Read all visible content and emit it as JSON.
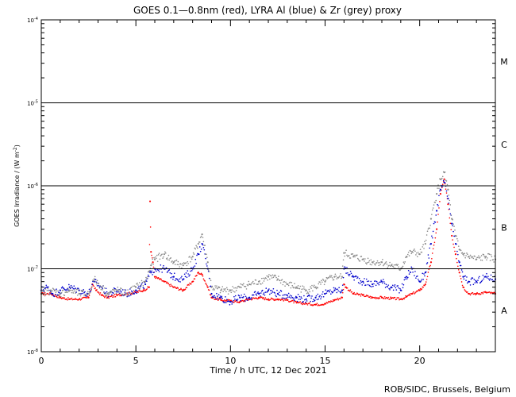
{
  "chart_data": {
    "type": "scatter",
    "title": "GOES 0.1—0.8nm (red), LYRA Al (blue) & Zr (grey) proxy",
    "xlabel": "Time / h UTC, 12 Dec 2021",
    "ylabel_main": "GOES Irradiance / (W m",
    "ylabel_sup": "-2",
    "ylabel_close": ")",
    "credit": "ROB/SIDC, Brussels, Belgium",
    "xlim": [
      0,
      24
    ],
    "ylim": [
      1e-08,
      0.0001
    ],
    "y_scale": "log",
    "x_ticks": [
      {
        "value": 0,
        "label": "0"
      },
      {
        "value": 5,
        "label": "5"
      },
      {
        "value": 10,
        "label": "10"
      },
      {
        "value": 15,
        "label": "15"
      },
      {
        "value": 20,
        "label": "20"
      }
    ],
    "y_ticks": [
      {
        "value": 1e-08,
        "base": "10",
        "exp": "-8"
      },
      {
        "value": 1e-07,
        "base": "10",
        "exp": "-7"
      },
      {
        "value": 1e-06,
        "base": "10",
        "exp": "-6"
      },
      {
        "value": 1e-05,
        "base": "10",
        "exp": "-5"
      },
      {
        "value": 0.0001,
        "base": "10",
        "exp": "-4"
      }
    ],
    "flare_lines": [
      1e-07,
      1e-06,
      1e-05
    ],
    "flare_classes": [
      {
        "label": "A",
        "value": 3.16e-08
      },
      {
        "label": "B",
        "value": 3.16e-07
      },
      {
        "label": "C",
        "value": 3.16e-06
      },
      {
        "label": "M",
        "value": 3.16e-05
      }
    ],
    "series": [
      {
        "name": "GOES 0.1—0.8nm",
        "color": "#ff0000",
        "x": [
          0,
          0.5,
          1,
          1.5,
          2,
          2.5,
          2.7,
          2.9,
          3.2,
          3.5,
          4,
          4.5,
          5,
          5.4,
          5.7,
          5.75,
          5.8,
          5.9,
          6,
          6.5,
          7,
          7.5,
          8,
          8.3,
          8.5,
          8.8,
          9,
          9.5,
          10,
          10.5,
          11,
          11.5,
          12,
          12.5,
          13,
          13.5,
          14,
          14.5,
          15,
          15.5,
          15.9,
          16,
          16.1,
          16.5,
          17,
          17.5,
          18,
          18.5,
          19,
          19.3,
          19.6,
          20,
          20.3,
          20.6,
          20.9,
          21.1,
          21.3,
          21.5,
          21.7,
          21.9,
          22.1,
          22.3,
          22.6,
          23,
          23.5,
          24
        ],
        "y": [
          5e-08,
          5e-08,
          4.5e-08,
          4.3e-08,
          4.3e-08,
          4.5e-08,
          6.5e-08,
          5.5e-08,
          4.8e-08,
          4.5e-08,
          4.8e-08,
          5e-08,
          5.2e-08,
          5.5e-08,
          6e-08,
          6.5e-07,
          1.6e-07,
          1.2e-07,
          8e-08,
          7e-08,
          6e-08,
          5.5e-08,
          7e-08,
          9e-08,
          8.5e-08,
          6e-08,
          4.5e-08,
          4.2e-08,
          4.1e-08,
          4e-08,
          4.3e-08,
          4.5e-08,
          4.3e-08,
          4.3e-08,
          4.2e-08,
          3.9e-08,
          3.8e-08,
          3.7e-08,
          3.8e-08,
          4.2e-08,
          4.5e-08,
          6.5e-08,
          6e-08,
          5e-08,
          4.8e-08,
          4.5e-08,
          4.5e-08,
          4.4e-08,
          4.3e-08,
          4.6e-08,
          5e-08,
          5.5e-08,
          6.5e-08,
          1.2e-07,
          3e-07,
          8e-07,
          1.2e-06,
          6e-07,
          2.5e-07,
          1.5e-07,
          9e-08,
          6e-08,
          5e-08,
          5e-08,
          5.2e-08,
          5e-08
        ]
      },
      {
        "name": "LYRA Al",
        "color": "#0000cc",
        "x": [
          0,
          0.3,
          0.6,
          1,
          1.5,
          2,
          2.5,
          2.8,
          3.2,
          3.5,
          4,
          4.5,
          5,
          5.5,
          5.8,
          6,
          6.5,
          7,
          7.5,
          8,
          8.3,
          8.5,
          8.8,
          9,
          9.5,
          10,
          10.5,
          11,
          11.5,
          12,
          12.5,
          13,
          13.5,
          14,
          14.5,
          15,
          15.5,
          15.9,
          16,
          16.5,
          17,
          17.5,
          18,
          18.5,
          19,
          19.3,
          19.6,
          20,
          20.3,
          20.6,
          20.9,
          21.1,
          21.3,
          21.5,
          21.7,
          21.9,
          22.1,
          22.3,
          22.6,
          23,
          23.5,
          24
        ],
        "y": [
          5.5e-08,
          6e-08,
          5e-08,
          5.5e-08,
          6e-08,
          5.5e-08,
          5e-08,
          7e-08,
          6e-08,
          5e-08,
          5.5e-08,
          5e-08,
          5.5e-08,
          6.5e-08,
          9e-08,
          1e-07,
          1e-07,
          8e-08,
          7.5e-08,
          1e-07,
          1.5e-07,
          2e-07,
          1e-07,
          5e-08,
          4.5e-08,
          4e-08,
          4.5e-08,
          4.5e-08,
          5e-08,
          5.5e-08,
          5e-08,
          4.8e-08,
          4.5e-08,
          4.3e-08,
          4.5e-08,
          5e-08,
          5.5e-08,
          5.5e-08,
          1e-07,
          8e-08,
          7e-08,
          6.5e-08,
          7e-08,
          6e-08,
          5.5e-08,
          8e-08,
          1e-07,
          7e-08,
          9e-08,
          2e-07,
          5e-07,
          9e-07,
          1.1e-06,
          7e-07,
          3.5e-07,
          2e-07,
          1.2e-07,
          8e-08,
          7e-08,
          7e-08,
          8e-08,
          7.5e-08
        ]
      },
      {
        "name": "LYRA Zr",
        "color": "#8a8a8a",
        "x": [
          0,
          0.5,
          1,
          1.5,
          2,
          2.5,
          2.8,
          3.2,
          3.5,
          4,
          4.5,
          5,
          5.5,
          5.8,
          6,
          6.5,
          7,
          7.5,
          8,
          8.3,
          8.5,
          8.8,
          9,
          9.5,
          10,
          10.5,
          11,
          11.5,
          12,
          12.5,
          13,
          13.5,
          14,
          14.5,
          15,
          15.5,
          15.9,
          16,
          16.5,
          17,
          17.5,
          18,
          18.5,
          19,
          19.3,
          19.6,
          20,
          20.3,
          20.6,
          20.9,
          21.1,
          21.3,
          21.5,
          21.7,
          21.9,
          22.1,
          22.3,
          22.6,
          23,
          23.5,
          24
        ],
        "y": [
          5e-08,
          5.5e-08,
          5e-08,
          5.5e-08,
          5e-08,
          5e-08,
          7.5e-08,
          6e-08,
          5e-08,
          5.5e-08,
          5e-08,
          6e-08,
          7e-08,
          1.1e-07,
          1.3e-07,
          1.5e-07,
          1.2e-07,
          1.1e-07,
          1.4e-07,
          2e-07,
          2.6e-07,
          1.2e-07,
          6e-08,
          5.5e-08,
          5.5e-08,
          6e-08,
          6.5e-08,
          7e-08,
          8e-08,
          7.5e-08,
          6.5e-08,
          6e-08,
          5.5e-08,
          6e-08,
          7e-08,
          8e-08,
          8e-08,
          1.55e-07,
          1.4e-07,
          1.3e-07,
          1.2e-07,
          1.2e-07,
          1.1e-07,
          1e-07,
          1.4e-07,
          1.6e-07,
          1.5e-07,
          2e-07,
          4e-07,
          8e-07,
          1.2e-06,
          1.45e-06,
          9e-07,
          4e-07,
          2.5e-07,
          1.7e-07,
          1.5e-07,
          1.4e-07,
          1.3e-07,
          1.4e-07,
          1.3e-07
        ]
      }
    ]
  }
}
